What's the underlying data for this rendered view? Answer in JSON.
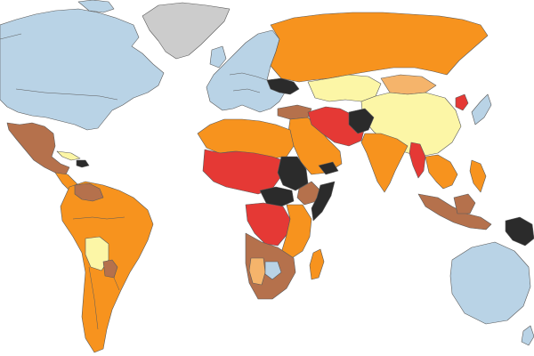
{
  "map": {
    "palette": {
      "blue": "#b9d3e6",
      "pale_yellow": "#fcf6a6",
      "light_orange": "#f5b46b",
      "orange": "#f7931e",
      "brown": "#b5714c",
      "red": "#e53935",
      "black": "#2b2b2b",
      "gray": "#cccccc",
      "water": "#ffffff"
    },
    "regions": [
      {
        "name": "greenland",
        "color": "gray"
      },
      {
        "name": "north-america",
        "color": "blue"
      },
      {
        "name": "mexico",
        "color": "brown"
      },
      {
        "name": "central-america",
        "color": "orange"
      },
      {
        "name": "caribbean",
        "color": "pale_yellow"
      },
      {
        "name": "haiti",
        "color": "black"
      },
      {
        "name": "south-america",
        "color": "orange"
      },
      {
        "name": "venezuela",
        "color": "brown"
      },
      {
        "name": "bolivia",
        "color": "pale_yellow"
      },
      {
        "name": "paraguay",
        "color": "brown"
      },
      {
        "name": "europe",
        "color": "blue"
      },
      {
        "name": "ukraine",
        "color": "black"
      },
      {
        "name": "russia",
        "color": "orange"
      },
      {
        "name": "kazakhstan",
        "color": "pale_yellow"
      },
      {
        "name": "mongolia",
        "color": "light_orange"
      },
      {
        "name": "china",
        "color": "pale_yellow"
      },
      {
        "name": "north-korea",
        "color": "red"
      },
      {
        "name": "japan",
        "color": "blue"
      },
      {
        "name": "turkey",
        "color": "brown"
      },
      {
        "name": "middle-east",
        "color": "orange"
      },
      {
        "name": "iran",
        "color": "red"
      },
      {
        "name": "afghanistan",
        "color": "black"
      },
      {
        "name": "india",
        "color": "orange"
      },
      {
        "name": "myanmar",
        "color": "red"
      },
      {
        "name": "southeast-asia",
        "color": "orange"
      },
      {
        "name": "indonesia",
        "color": "brown"
      },
      {
        "name": "papua-new-guinea",
        "color": "black"
      },
      {
        "name": "australia",
        "color": "blue"
      },
      {
        "name": "new-zealand",
        "color": "blue"
      },
      {
        "name": "north-africa",
        "color": "orange"
      },
      {
        "name": "sahel",
        "color": "red"
      },
      {
        "name": "sudan",
        "color": "black"
      },
      {
        "name": "ethiopia",
        "color": "brown"
      },
      {
        "name": "somalia",
        "color": "black"
      },
      {
        "name": "yemen",
        "color": "black"
      },
      {
        "name": "south-sudan",
        "color": "black"
      },
      {
        "name": "dr-congo",
        "color": "red"
      },
      {
        "name": "east-africa",
        "color": "orange"
      },
      {
        "name": "southern-africa",
        "color": "brown"
      },
      {
        "name": "namibia",
        "color": "light_orange"
      },
      {
        "name": "botswana",
        "color": "blue"
      },
      {
        "name": "madagascar",
        "color": "orange"
      }
    ]
  }
}
